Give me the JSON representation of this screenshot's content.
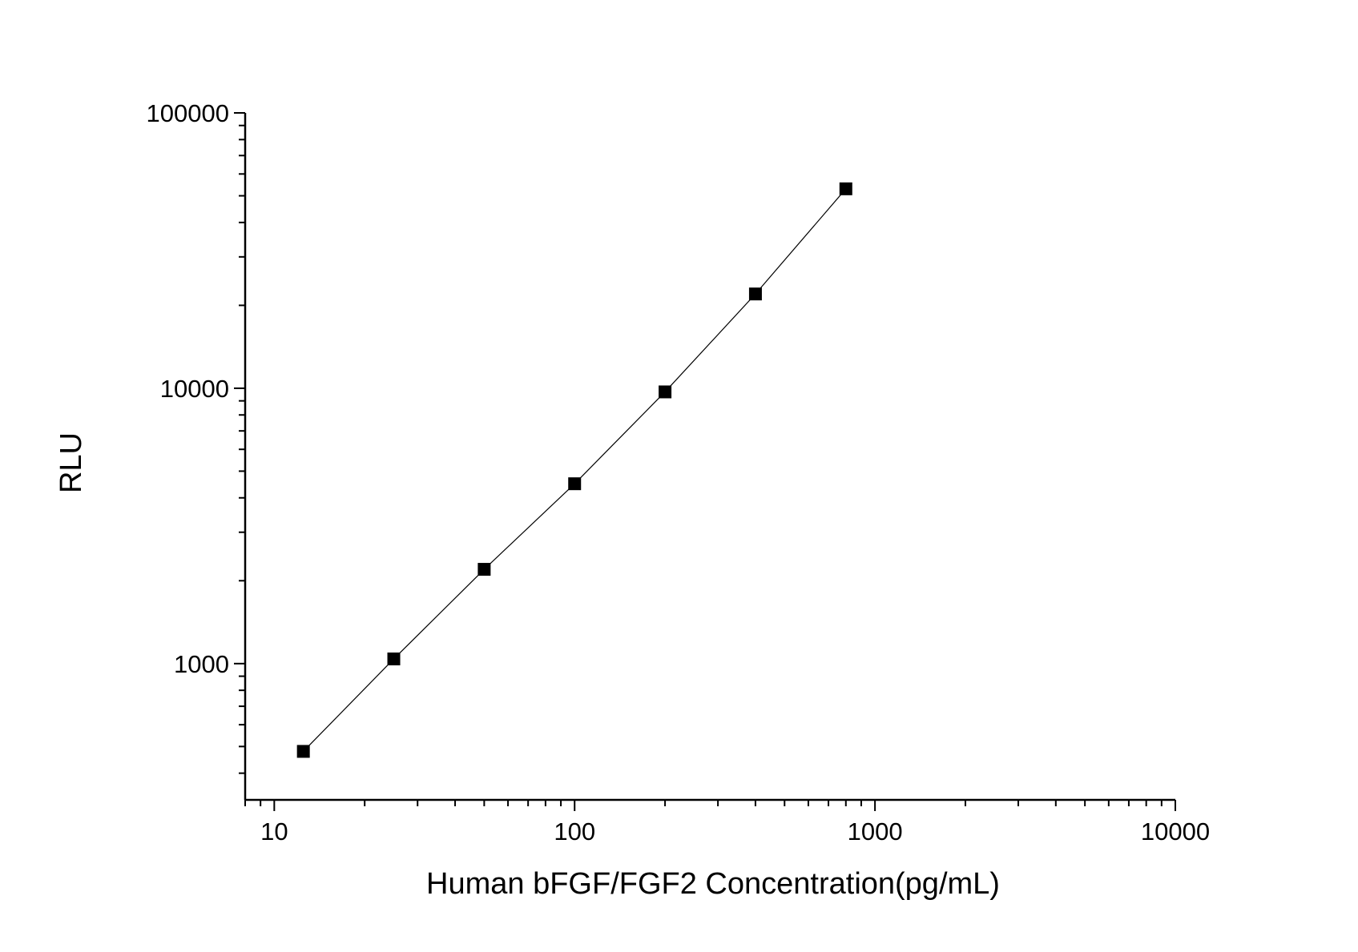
{
  "chart_data": {
    "type": "scatter",
    "title": "",
    "xlabel": "Human bFGF/FGF2 Concentration(pg/mL)",
    "ylabel": "RLU",
    "xscale": "log",
    "yscale": "log",
    "xlim": [
      8,
      10000
    ],
    "ylim": [
      320,
      100000
    ],
    "x_tick_labels": [
      "10",
      "100",
      "1000",
      "10000"
    ],
    "y_tick_labels": [
      "1000",
      "10000",
      "100000"
    ],
    "grid": false,
    "legend": "none",
    "series": [
      {
        "marker": "square",
        "color": "#000000",
        "fit_line": true,
        "points": [
          {
            "x": 12.5,
            "y": 480
          },
          {
            "x": 25,
            "y": 1040
          },
          {
            "x": 50,
            "y": 2200
          },
          {
            "x": 100,
            "y": 4500
          },
          {
            "x": 200,
            "y": 9700
          },
          {
            "x": 400,
            "y": 22000
          },
          {
            "x": 800,
            "y": 53000
          }
        ]
      }
    ]
  }
}
